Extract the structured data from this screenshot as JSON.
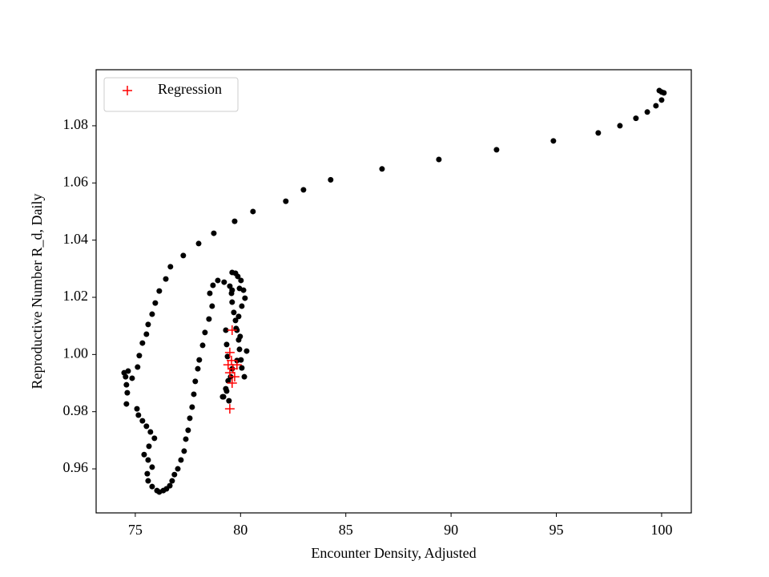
{
  "chart_data": {
    "type": "scatter",
    "x_label": "Encounter Density, Adjusted",
    "y_label": "Reproductive Number R_d, Daily",
    "xlim": [
      73.14,
      101.41
    ],
    "ylim": [
      0.9446,
      1.0996
    ],
    "xticks": [
      75,
      80,
      85,
      90,
      95,
      100
    ],
    "yticks": [
      0.96,
      0.98,
      {
        "value": 1,
        "label": "1.00"
      },
      1.02,
      1.04,
      1.06,
      1.08
    ],
    "legend": "upper left",
    "series": [
      {
        "color": "#000000",
        "marker": "o",
        "x": [
          100.0,
          99.89,
          100.11,
          100.0,
          99.73,
          99.32,
          98.78,
          98.02,
          96.99,
          94.86,
          92.16,
          89.42,
          86.72,
          84.28,
          82.99,
          82.15,
          80.59,
          79.72,
          78.73,
          78.01,
          77.28,
          76.67,
          76.45,
          76.14,
          75.95,
          75.8,
          75.61,
          75.53,
          75.34,
          75.19,
          75.11,
          74.85,
          74.66,
          74.47,
          74.54,
          74.58,
          74.62,
          74.58,
          75.08,
          75.15,
          75.34,
          75.53,
          75.72,
          75.91,
          75.42,
          75.65,
          75.61,
          75.57,
          75.8,
          75.61,
          75.8,
          76.03,
          76.14,
          76.33,
          76.48,
          76.64,
          76.75,
          76.86,
          77.02,
          77.17,
          77.32,
          77.4,
          77.51,
          77.59,
          77.7,
          77.78,
          77.85,
          77.97,
          78.04,
          78.2,
          78.31,
          78.5,
          78.65,
          78.54,
          78.69,
          78.92,
          79.22,
          79.49,
          79.57,
          79.6,
          79.68,
          79.76,
          79.83,
          79.91,
          79.95,
          80.02,
          80.06,
          80.18,
          79.76,
          79.87,
          80.02,
          80.14,
          80.21,
          80.06,
          79.91,
          79.79,
          79.98,
          80.29,
          79.83,
          79.6,
          79.41,
          79.34,
          79.19,
          79.3,
          79.45,
          79.53,
          79.3,
          79.34,
          79.38,
          79.15,
          79.6,
          79.6,
          79.95
        ],
        "values": [
          1.0918,
          1.0923,
          1.0915,
          1.089,
          1.087,
          1.0848,
          1.0826,
          1.08,
          1.0775,
          1.0747,
          1.0716,
          1.0682,
          1.0649,
          1.0611,
          1.0576,
          1.0536,
          1.05,
          1.0466,
          1.0424,
          1.0388,
          1.0346,
          1.0307,
          1.0264,
          1.0222,
          1.018,
          1.0141,
          1.0105,
          1.0071,
          1.004,
          0.9996,
          0.9956,
          0.9917,
          0.9942,
          0.9936,
          0.9922,
          0.9894,
          0.9866,
          0.9827,
          0.981,
          0.9788,
          0.9768,
          0.9749,
          0.9729,
          0.9707,
          0.965,
          0.9679,
          0.9631,
          0.9583,
          0.9606,
          0.9558,
          0.9538,
          0.9524,
          0.9519,
          0.9524,
          0.953,
          0.9541,
          0.9558,
          0.958,
          0.96,
          0.9631,
          0.9662,
          0.9704,
          0.9735,
          0.9777,
          0.9816,
          0.9861,
          0.9906,
          0.995,
          0.9981,
          1.0032,
          1.0077,
          1.0124,
          1.0169,
          1.0214,
          1.0242,
          1.0259,
          1.0253,
          1.0239,
          1.0214,
          1.0183,
          1.0147,
          1.0119,
          1.0085,
          1.0051,
          1.0018,
          0.9981,
          0.9953,
          0.9922,
          1.0284,
          1.0273,
          1.0259,
          1.0225,
          1.0197,
          1.0169,
          1.0133,
          1.0091,
          1.0063,
          1.0012,
          0.9979,
          0.995,
          0.9908,
          0.9872,
          0.9852,
          0.988,
          0.9838,
          0.9922,
          1.0085,
          1.0035,
          0.9993,
          0.9852,
          1.0225,
          1.0287,
          1.0231
        ]
      },
      {
        "name": "Regression",
        "color": "#ff0000",
        "marker": "+",
        "x": [
          79.49,
          79.49,
          79.64,
          79.57,
          79.49,
          79.83,
          79.72,
          79.41,
          79.6,
          79.6
        ],
        "values": [
          0.981,
          0.9936,
          0.995,
          0.9979,
          1.0007,
          0.9964,
          0.9922,
          0.9964,
          0.99,
          1.0085
        ]
      }
    ]
  }
}
